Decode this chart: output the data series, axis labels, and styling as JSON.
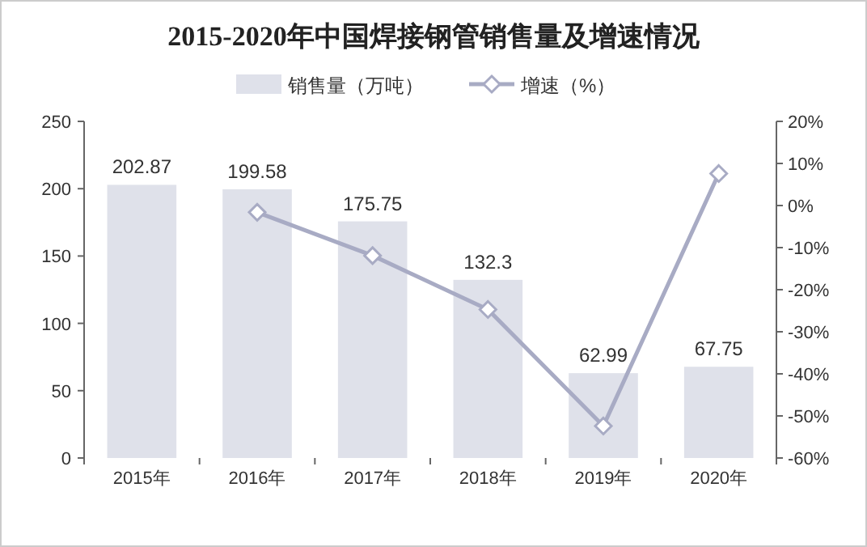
{
  "chart_data": {
    "type": "bar",
    "title": "2015-2020年中国焊接钢管销售量及增速情况",
    "categories": [
      "2015年",
      "2016年",
      "2017年",
      "2018年",
      "2019年",
      "2020年"
    ],
    "series": [
      {
        "name": "销售量（万吨）",
        "color": "#dfe1ea",
        "values": [
          202.87,
          199.58,
          175.75,
          132.3,
          62.99,
          67.75
        ],
        "value_labels": [
          "202.87",
          "199.58",
          "175.75",
          "132.3",
          "62.99",
          "67.75"
        ]
      },
      {
        "name": "增速（%）",
        "type": "line",
        "axis": "y2",
        "color": "#a8abc4",
        "marker": "diamond",
        "values": [
          null,
          -1.6,
          -11.9,
          -24.7,
          -52.4,
          7.6
        ]
      }
    ],
    "ylim": [
      0,
      250
    ],
    "yticks": [
      0,
      50,
      100,
      150,
      200,
      250
    ],
    "y2lim": [
      -60,
      20
    ],
    "y2ticks": [
      {
        "value": -60,
        "label": "-60%"
      },
      {
        "value": -50,
        "label": "-50%"
      },
      {
        "value": -40,
        "label": "-40%"
      },
      {
        "value": -30,
        "label": "-30%"
      },
      {
        "value": -20,
        "label": "-20%"
      },
      {
        "value": -10,
        "label": "-10%"
      },
      {
        "value": 0,
        "label": "0%"
      },
      {
        "value": 10,
        "label": "10%"
      },
      {
        "value": 20,
        "label": "20%"
      }
    ],
    "legend": "top",
    "grid": false
  }
}
